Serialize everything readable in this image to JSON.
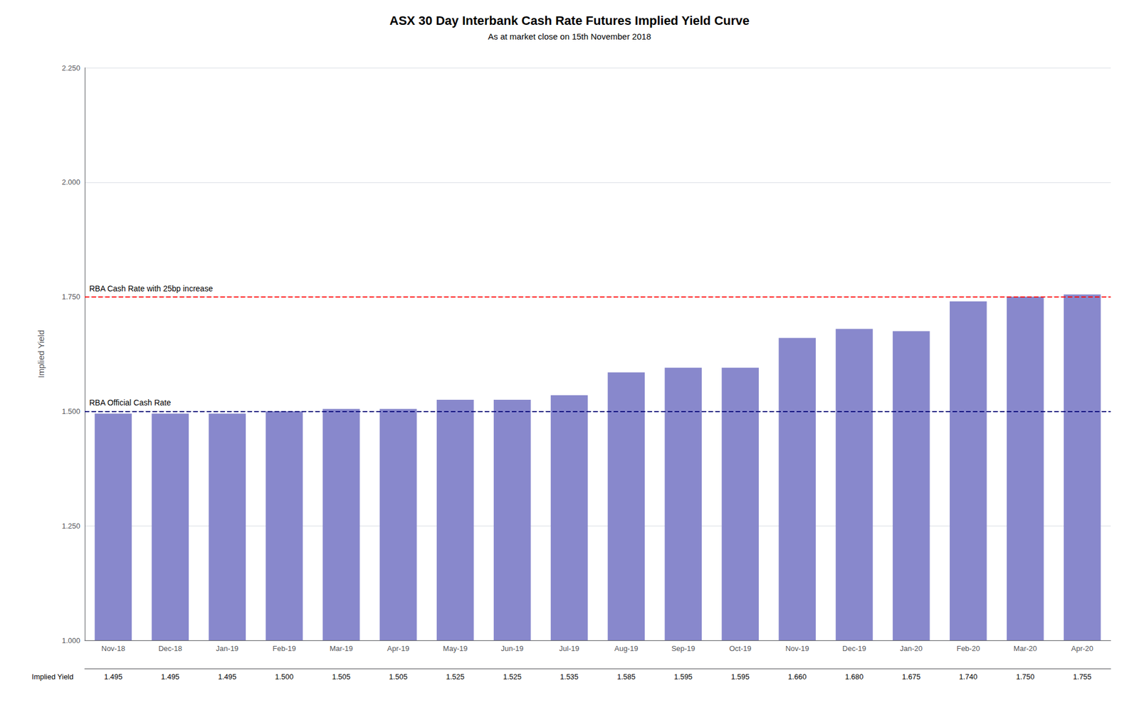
{
  "chart_data": {
    "type": "bar",
    "title": "ASX 30 Day Interbank Cash Rate Futures Implied Yield Curve",
    "subtitle": "As at market close on 15th November 2018",
    "categories": [
      "Nov-18",
      "Dec-18",
      "Jan-19",
      "Feb-19",
      "Mar-19",
      "Apr-19",
      "May-19",
      "Jun-19",
      "Jul-19",
      "Aug-19",
      "Sep-19",
      "Oct-19",
      "Nov-19",
      "Dec-19",
      "Jan-20",
      "Feb-20",
      "Mar-20",
      "Apr-20"
    ],
    "values": [
      1.495,
      1.495,
      1.495,
      1.5,
      1.505,
      1.505,
      1.525,
      1.525,
      1.535,
      1.585,
      1.595,
      1.595,
      1.66,
      1.68,
      1.675,
      1.74,
      1.75,
      1.755
    ],
    "value_labels": [
      "1.495",
      "1.495",
      "1.495",
      "1.500",
      "1.505",
      "1.505",
      "1.525",
      "1.525",
      "1.535",
      "1.585",
      "1.595",
      "1.595",
      "1.660",
      "1.680",
      "1.675",
      "1.740",
      "1.750",
      "1.755"
    ],
    "table_row_label": "Implied Yield",
    "color": "#8888CC",
    "ylabel": "Implied Yield",
    "ylim": [
      1.0,
      2.25
    ],
    "yticks": [
      {
        "value": 1.0,
        "label": "1.000"
      },
      {
        "value": 1.25,
        "label": "1.250"
      },
      {
        "value": 1.5,
        "label": "1.500"
      },
      {
        "value": 1.75,
        "label": "1.750"
      },
      {
        "value": 2.0,
        "label": "2.000"
      },
      {
        "value": 2.25,
        "label": "2.250"
      }
    ],
    "grid": true,
    "reference_lines": [
      {
        "value": 1.5,
        "label": "RBA Official Cash Rate",
        "color": "#000080",
        "line_style": "dashed"
      },
      {
        "value": 1.75,
        "label": "RBA Cash Rate with 25bp increase",
        "color": "#FF0000",
        "line_style": "dashed"
      }
    ]
  }
}
